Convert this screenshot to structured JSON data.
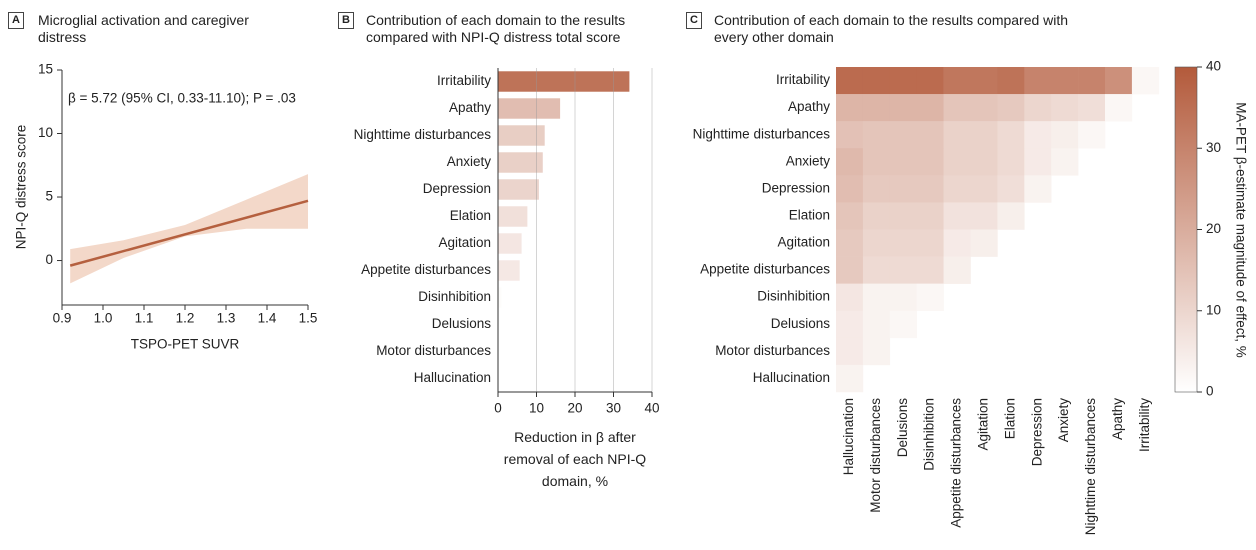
{
  "chart_data": [
    {
      "type": "line",
      "panel": "A",
      "title": "Microglial activation and caregiver distress",
      "x_label": "TSPO-PET SUVR",
      "y_label": "NPI-Q distress score",
      "annotation": "β = 5.72 (95% CI, 0.33-11.10); P = .03",
      "xlim": [
        0.9,
        1.5
      ],
      "xticks": [
        0.9,
        {
          "value": 1,
          "label": "1.0"
        },
        1.1,
        1.2,
        1.3,
        1.4,
        1.5
      ],
      "ylim": [
        -3.5,
        15
      ],
      "yticks": [
        0,
        5,
        10,
        15
      ],
      "series": [
        {
          "x": [
            0.92,
            1.5
          ],
          "values": [
            -0.4,
            4.7
          ],
          "color": "#b5603f"
        }
      ],
      "band": {
        "x": [
          0.92,
          1.05,
          1.2,
          1.35,
          1.5
        ],
        "lower": [
          -1.8,
          0.2,
          1.9,
          2.5,
          2.5
        ],
        "upper": [
          0.9,
          1.6,
          2.8,
          4.8,
          6.8
        ],
        "color": "#f3d8c9"
      }
    },
    {
      "type": "hbar",
      "panel": "B",
      "title": "Contribution of each domain to the results compared with NPI-Q distress total score",
      "x_label": "Reduction in β after removal of each NPI-Q domain, %",
      "categories": [
        "Irritability",
        "Apathy",
        "Nighttime disturbances",
        "Anxiety",
        "Depression",
        "Elation",
        "Agitation",
        "Appetite disturbances",
        "Disinhibition",
        "Delusions",
        "Motor disturbances",
        "Hallucination"
      ],
      "values": [
        34,
        16,
        12,
        11.5,
        10.5,
        7.5,
        6,
        5.5,
        0.8,
        0,
        0,
        0
      ],
      "xlim": [
        0,
        40
      ],
      "xticks": [
        0,
        10,
        20,
        30,
        40
      ],
      "grid": true,
      "clim": [
        0,
        40
      ],
      "colormap": [
        "#ffffff",
        "#b35a3b"
      ]
    },
    {
      "type": "heatmap",
      "panel": "C",
      "title": "Contribution of each domain to the results compared with every other domain",
      "rows": [
        "Irritability",
        "Apathy",
        "Nighttime disturbances",
        "Anxiety",
        "Depression",
        "Elation",
        "Agitation",
        "Appetite disturbances",
        "Disinhibition",
        "Delusions",
        "Motor disturbances",
        "Hallucination"
      ],
      "columns": [
        "Hallucination",
        "Motor disturbances",
        "Delusions",
        "Disinhibition",
        "Appetite disturbances",
        "Agitation",
        "Elation",
        "Depression",
        "Anxiety",
        "Nighttime disturbances",
        "Apathy",
        "Irritability"
      ],
      "values": [
        [
          36,
          36,
          36,
          36,
          33,
          33,
          34,
          30,
          30,
          30,
          27,
          2
        ],
        [
          18,
          18,
          18,
          18,
          14,
          14,
          13,
          10,
          9,
          8,
          2,
          null
        ],
        [
          15,
          14,
          14,
          14,
          11,
          11,
          9,
          5,
          4,
          2,
          null,
          null
        ],
        [
          17,
          14,
          14,
          14,
          11,
          11,
          9,
          5,
          3,
          null,
          null,
          null
        ],
        [
          16,
          13,
          13,
          13,
          10,
          10,
          8,
          3,
          null,
          null,
          null,
          null
        ],
        [
          14,
          11,
          11,
          11,
          7,
          7,
          4,
          null,
          null,
          null,
          null,
          null
        ],
        [
          13,
          10,
          10,
          10,
          5,
          4,
          null,
          null,
          null,
          null,
          null,
          null
        ],
        [
          13,
          9,
          9,
          9,
          4,
          null,
          null,
          null,
          null,
          null,
          null,
          null
        ],
        [
          6,
          3,
          3,
          2,
          null,
          null,
          null,
          null,
          null,
          null,
          null,
          null
        ],
        [
          5,
          3,
          2,
          null,
          null,
          null,
          null,
          null,
          null,
          null,
          null,
          null
        ],
        [
          5,
          3,
          null,
          null,
          null,
          null,
          null,
          null,
          null,
          null,
          null,
          null
        ],
        [
          3,
          null,
          null,
          null,
          null,
          null,
          null,
          null,
          null,
          null,
          null,
          null
        ]
      ],
      "clim": [
        0,
        40
      ],
      "cticks": [
        0,
        10,
        20,
        30,
        40
      ],
      "colormap": [
        "#ffffff",
        "#b35a3b"
      ],
      "colorbar_label": "MA-PET β-estimate magnitude of effect, %"
    }
  ]
}
